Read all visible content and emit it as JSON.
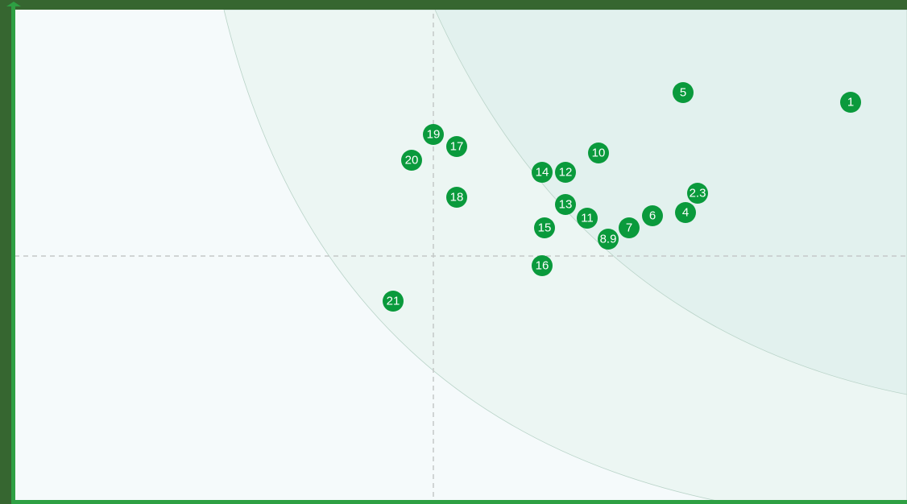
{
  "points": [
    "1",
    "5",
    "19",
    "17",
    "20",
    "10",
    "14",
    "12",
    "2.3",
    "18",
    "13",
    "4",
    "11",
    "6",
    "15",
    "7",
    "8.9",
    "16",
    "21"
  ]
}
